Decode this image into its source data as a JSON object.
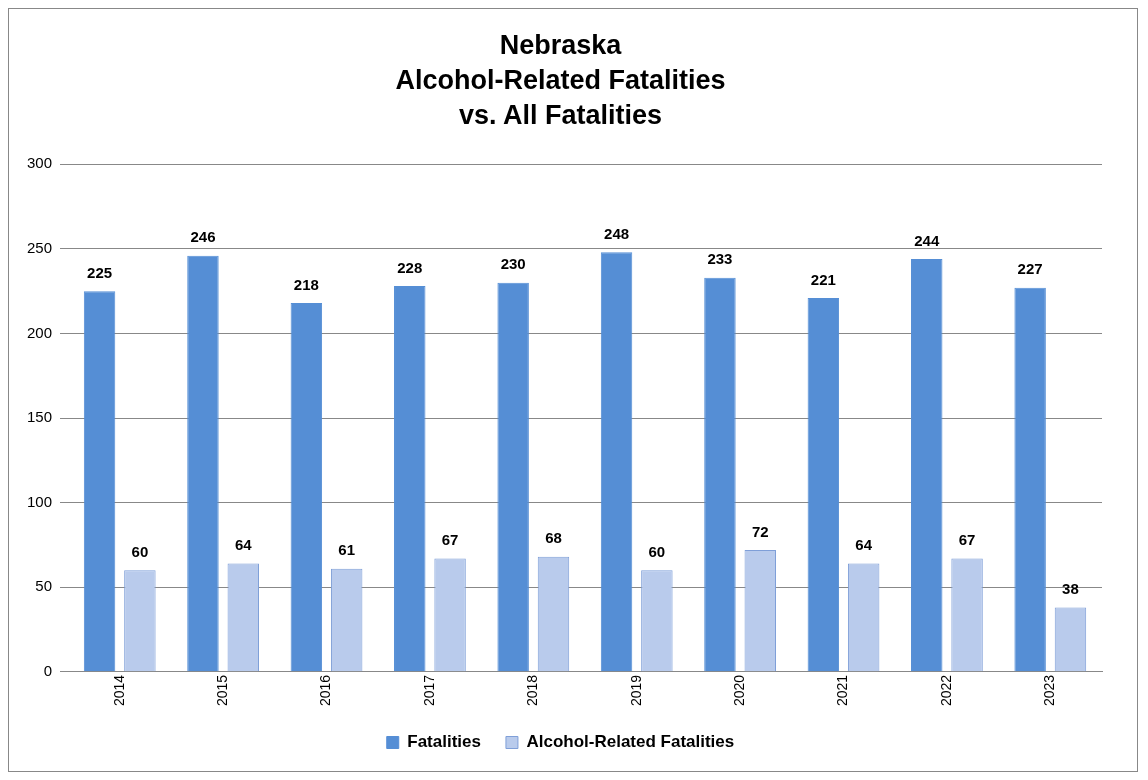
{
  "chart_data": {
    "type": "bar",
    "title": "Nebraska\nAlcohol-Related Fatalities\nvs. All Fatalities",
    "categories": [
      "2014",
      "2015",
      "2016",
      "2017",
      "2018",
      "2019",
      "2020",
      "2021",
      "2022",
      "2023"
    ],
    "series": [
      {
        "name": "Fatalities",
        "color": "#558ed5",
        "values": [
          225,
          246,
          218,
          228,
          230,
          248,
          233,
          221,
          244,
          227
        ]
      },
      {
        "name": "Alcohol-Related Fatalities",
        "color": "#b9cbec",
        "values": [
          60,
          64,
          61,
          67,
          68,
          60,
          72,
          64,
          67,
          38
        ]
      }
    ],
    "ylim": [
      0,
      300
    ],
    "yticks": [
      0,
      50,
      100,
      150,
      200,
      250,
      300
    ],
    "grid": "y",
    "legend": "bottom",
    "data_labels": true
  }
}
